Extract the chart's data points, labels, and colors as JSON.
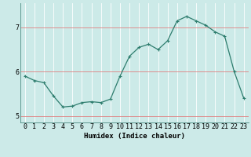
{
  "x": [
    0,
    1,
    2,
    3,
    4,
    5,
    6,
    7,
    8,
    9,
    10,
    11,
    12,
    13,
    14,
    15,
    16,
    17,
    18,
    19,
    20,
    21,
    22,
    23
  ],
  "y": [
    5.9,
    5.8,
    5.75,
    5.45,
    5.2,
    5.22,
    5.3,
    5.32,
    5.3,
    5.38,
    5.9,
    6.35,
    6.55,
    6.62,
    6.5,
    6.7,
    7.15,
    7.25,
    7.15,
    7.05,
    6.9,
    6.8,
    6.0,
    5.4
  ],
  "line_color": "#2e7d6e",
  "marker": "+",
  "marker_size": 3,
  "marker_linewidth": 0.8,
  "line_width": 0.9,
  "bg_color": "#cceae8",
  "grid_color_white": "#ffffff",
  "grid_color_red": "#e08080",
  "xlabel": "Humidex (Indice chaleur)",
  "xlabel_fontsize": 6.5,
  "tick_fontsize": 6,
  "ylim": [
    4.85,
    7.55
  ],
  "yticks": [
    5,
    6,
    7
  ],
  "xticks": [
    0,
    1,
    2,
    3,
    4,
    5,
    6,
    7,
    8,
    9,
    10,
    11,
    12,
    13,
    14,
    15,
    16,
    17,
    18,
    19,
    20,
    21,
    22,
    23
  ],
  "xtick_labels": [
    "0",
    "1",
    "2",
    "3",
    "4",
    "5",
    "6",
    "7",
    "8",
    "9",
    "10",
    "11",
    "12",
    "13",
    "14",
    "15",
    "16",
    "17",
    "18",
    "19",
    "20",
    "21",
    "22",
    "23"
  ]
}
